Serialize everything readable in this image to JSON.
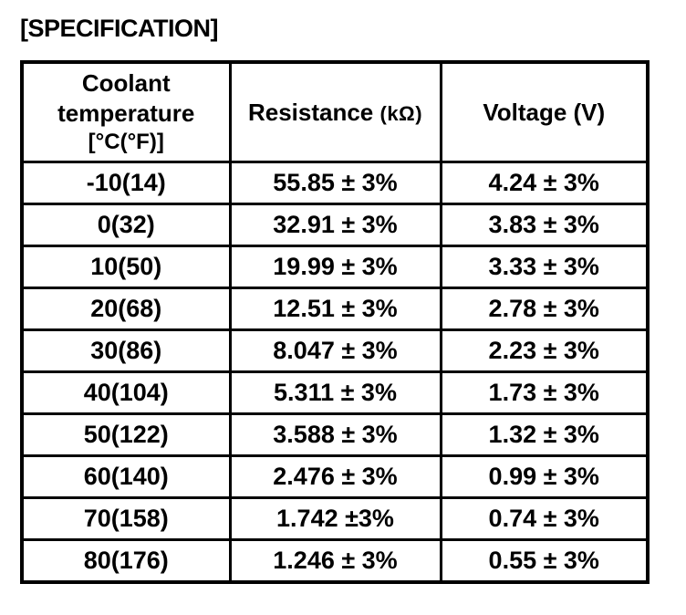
{
  "page": {
    "title": "[SPECIFICATION]"
  },
  "table": {
    "columns": [
      {
        "id": "coolant-temperature",
        "label_lines": [
          "Coolant",
          "temperature",
          "[°C(°F)]"
        ]
      },
      {
        "id": "resistance",
        "label": "Resistance",
        "unit": "(kΩ)"
      },
      {
        "id": "voltage",
        "label": "Voltage (V)"
      }
    ],
    "rows": [
      {
        "temperature": "-10(14)",
        "resistance": "55.85 ± 3%",
        "voltage": "4.24 ± 3%"
      },
      {
        "temperature": "0(32)",
        "resistance": "32.91 ± 3%",
        "voltage": "3.83 ± 3%"
      },
      {
        "temperature": "10(50)",
        "resistance": "19.99 ± 3%",
        "voltage": "3.33 ± 3%"
      },
      {
        "temperature": "20(68)",
        "resistance": "12.51 ± 3%",
        "voltage": "2.78 ± 3%"
      },
      {
        "temperature": "30(86)",
        "resistance": "8.047 ± 3%",
        "voltage": "2.23 ± 3%"
      },
      {
        "temperature": "40(104)",
        "resistance": "5.311 ± 3%",
        "voltage": "1.73 ± 3%"
      },
      {
        "temperature": "50(122)",
        "resistance": "3.588 ± 3%",
        "voltage": "1.32 ± 3%"
      },
      {
        "temperature": "60(140)",
        "resistance": "2.476 ± 3%",
        "voltage": "0.99 ± 3%"
      },
      {
        "temperature": "70(158)",
        "resistance": "1.742 ±3%",
        "voltage": "0.74 ± 3%"
      },
      {
        "temperature": "80(176)",
        "resistance": "1.246 ± 3%",
        "voltage": "0.55 ± 3%"
      }
    ]
  },
  "colors": {
    "text": "#000000",
    "border": "#000000",
    "background": "#ffffff"
  }
}
